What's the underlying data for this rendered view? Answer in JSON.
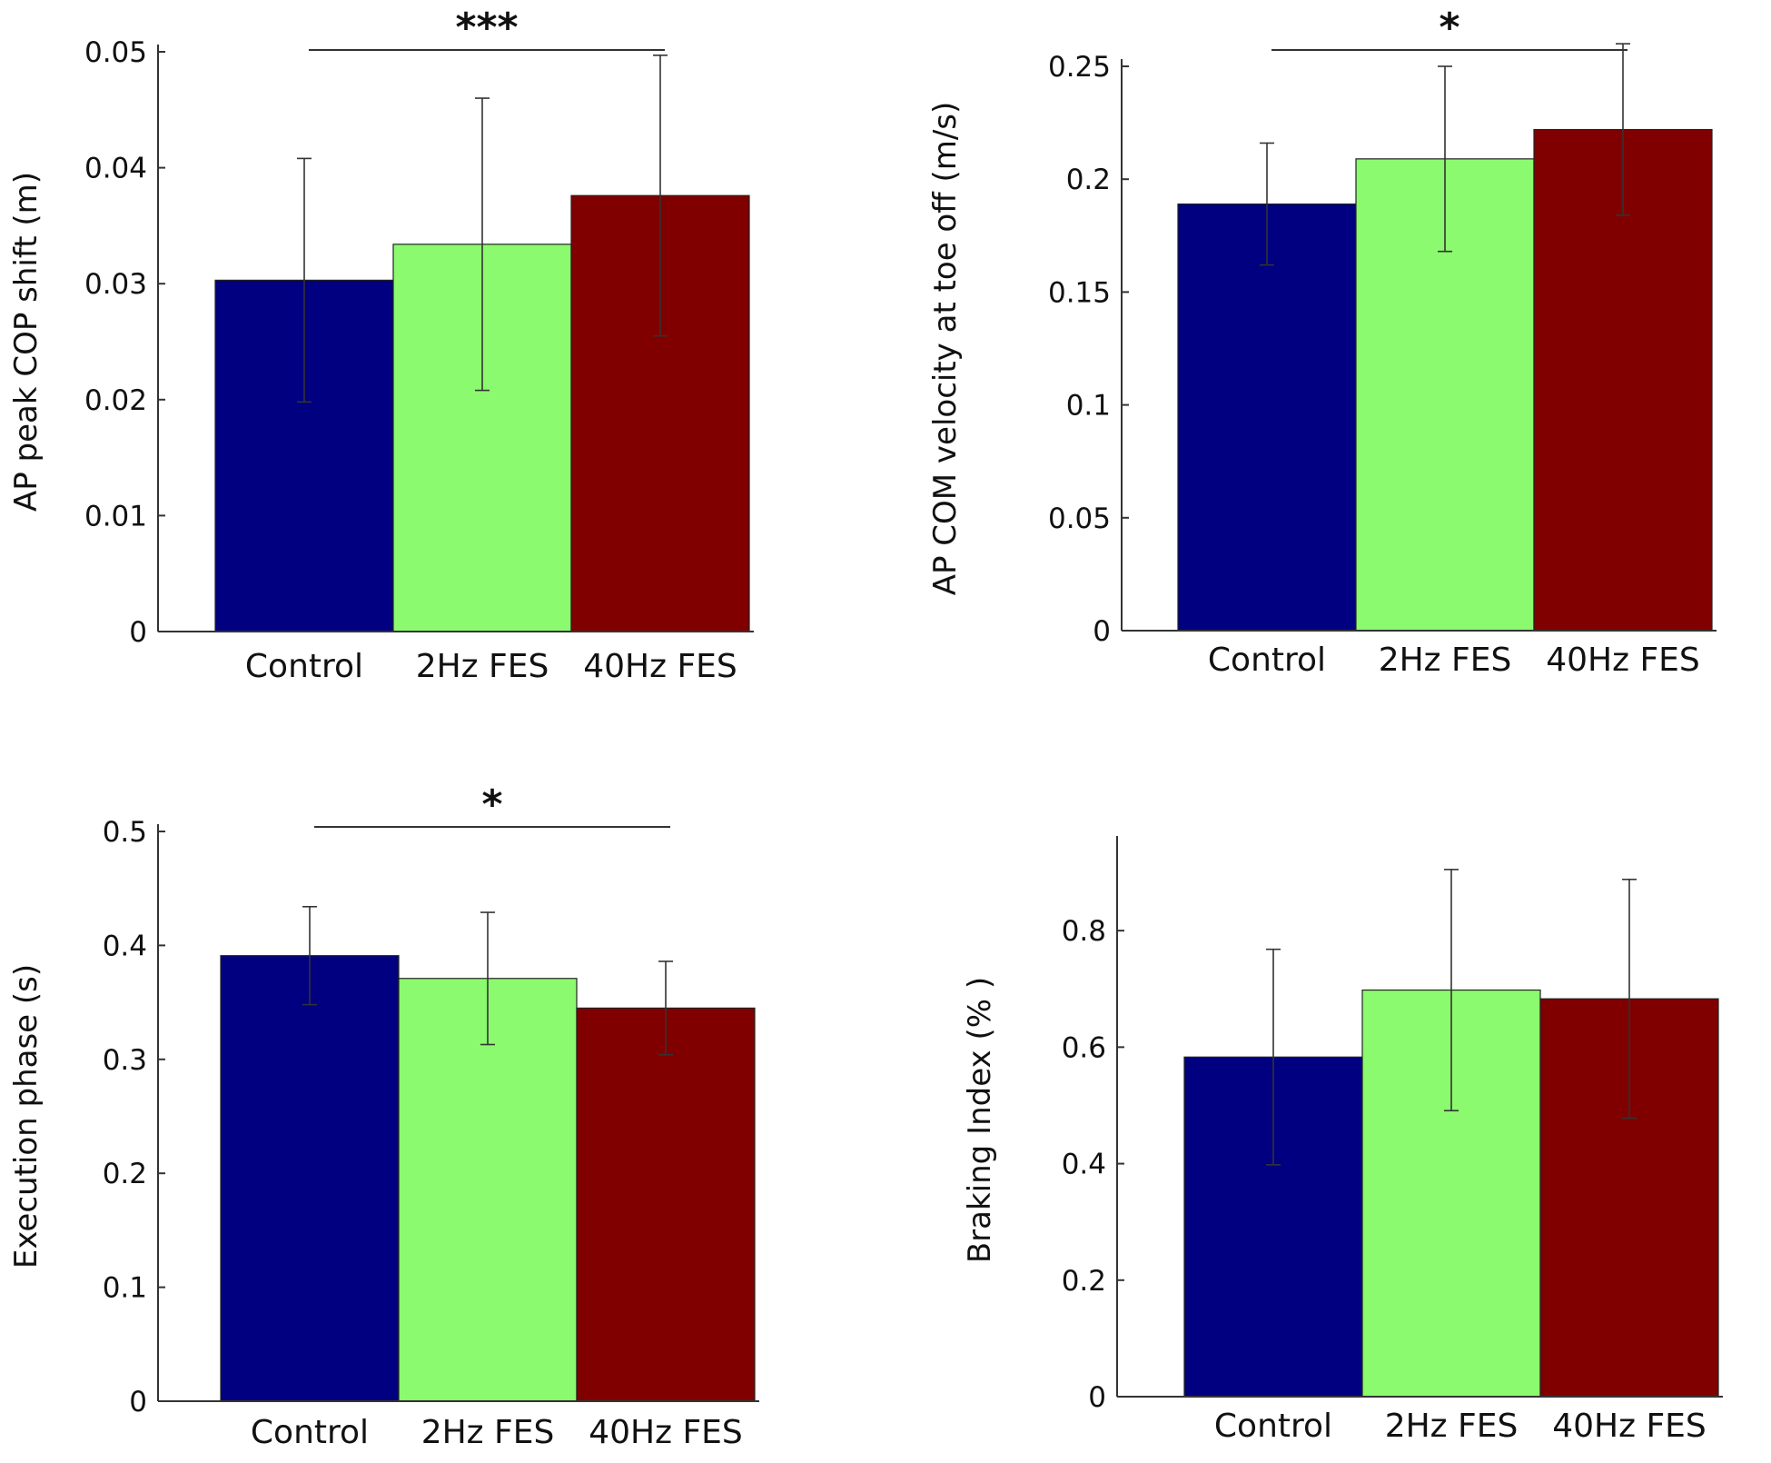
{
  "chart_data": [
    {
      "id": "cop",
      "type": "bar",
      "title": "",
      "xlabel": "",
      "ylabel": "AP peak COP shift (m)",
      "ylim": [
        0,
        0.05
      ],
      "yticks": [
        0,
        0.01,
        0.02,
        0.03,
        0.04,
        0.05
      ],
      "ytick_labels": [
        "0",
        "0.01",
        "0.02",
        "0.03",
        "0.04",
        "0.05"
      ],
      "categories": [
        "Control",
        "2Hz FES",
        "40Hz FES"
      ],
      "values": [
        0.0303,
        0.0334,
        0.0376
      ],
      "error": [
        0.0105,
        0.0126,
        0.0121
      ],
      "colors": [
        "#000080",
        "#8cfa6e",
        "#800000"
      ],
      "significance": {
        "from": 0,
        "to": 2,
        "label": "***"
      },
      "grid": false
    },
    {
      "id": "com",
      "type": "bar",
      "title": "",
      "xlabel": "",
      "ylabel": "AP COM velocity at toe off (m/s)",
      "ylim": [
        0,
        0.25
      ],
      "yticks": [
        0,
        0.05,
        0.1,
        0.15,
        0.2,
        0.25
      ],
      "ytick_labels": [
        "0",
        "0.05",
        "0.1",
        "0.15",
        "0.2",
        "0.25"
      ],
      "categories": [
        "Control",
        "2Hz FES",
        "40Hz FES"
      ],
      "values": [
        0.189,
        0.209,
        0.222
      ],
      "error": [
        0.027,
        0.041,
        0.038
      ],
      "colors": [
        "#000080",
        "#8cfa6e",
        "#800000"
      ],
      "significance": {
        "from": 0,
        "to": 2,
        "label": "*"
      },
      "grid": false
    },
    {
      "id": "exec",
      "type": "bar",
      "title": "",
      "xlabel": "",
      "ylabel": "Execution phase (s)",
      "ylim": [
        0,
        0.5
      ],
      "yticks": [
        0,
        0.1,
        0.2,
        0.3,
        0.4,
        0.5
      ],
      "ytick_labels": [
        "0",
        "0.1",
        "0.2",
        "0.3",
        "0.4",
        "0.5"
      ],
      "categories": [
        "Control",
        "2Hz FES",
        "40Hz FES"
      ],
      "values": [
        0.391,
        0.371,
        0.345
      ],
      "error": [
        0.043,
        0.058,
        0.041
      ],
      "colors": [
        "#000080",
        "#8cfa6e",
        "#800000"
      ],
      "significance": {
        "from": 0,
        "to": 2,
        "label": "*"
      },
      "grid": false
    },
    {
      "id": "brake",
      "type": "bar",
      "title": "",
      "xlabel": "",
      "ylabel": "Braking Index (% )",
      "ylim": [
        0,
        0.95
      ],
      "yticks": [
        0,
        0.2,
        0.4,
        0.6,
        0.8
      ],
      "ytick_labels": [
        "0",
        "0.2",
        "0.4",
        "0.6",
        "0.8"
      ],
      "categories": [
        "Control",
        "2Hz FES",
        "40Hz FES"
      ],
      "values": [
        0.583,
        0.698,
        0.683
      ],
      "error": [
        0.185,
        0.207,
        0.205
      ],
      "colors": [
        "#000080",
        "#8cfa6e",
        "#800000"
      ],
      "significance": null,
      "grid": false
    }
  ]
}
